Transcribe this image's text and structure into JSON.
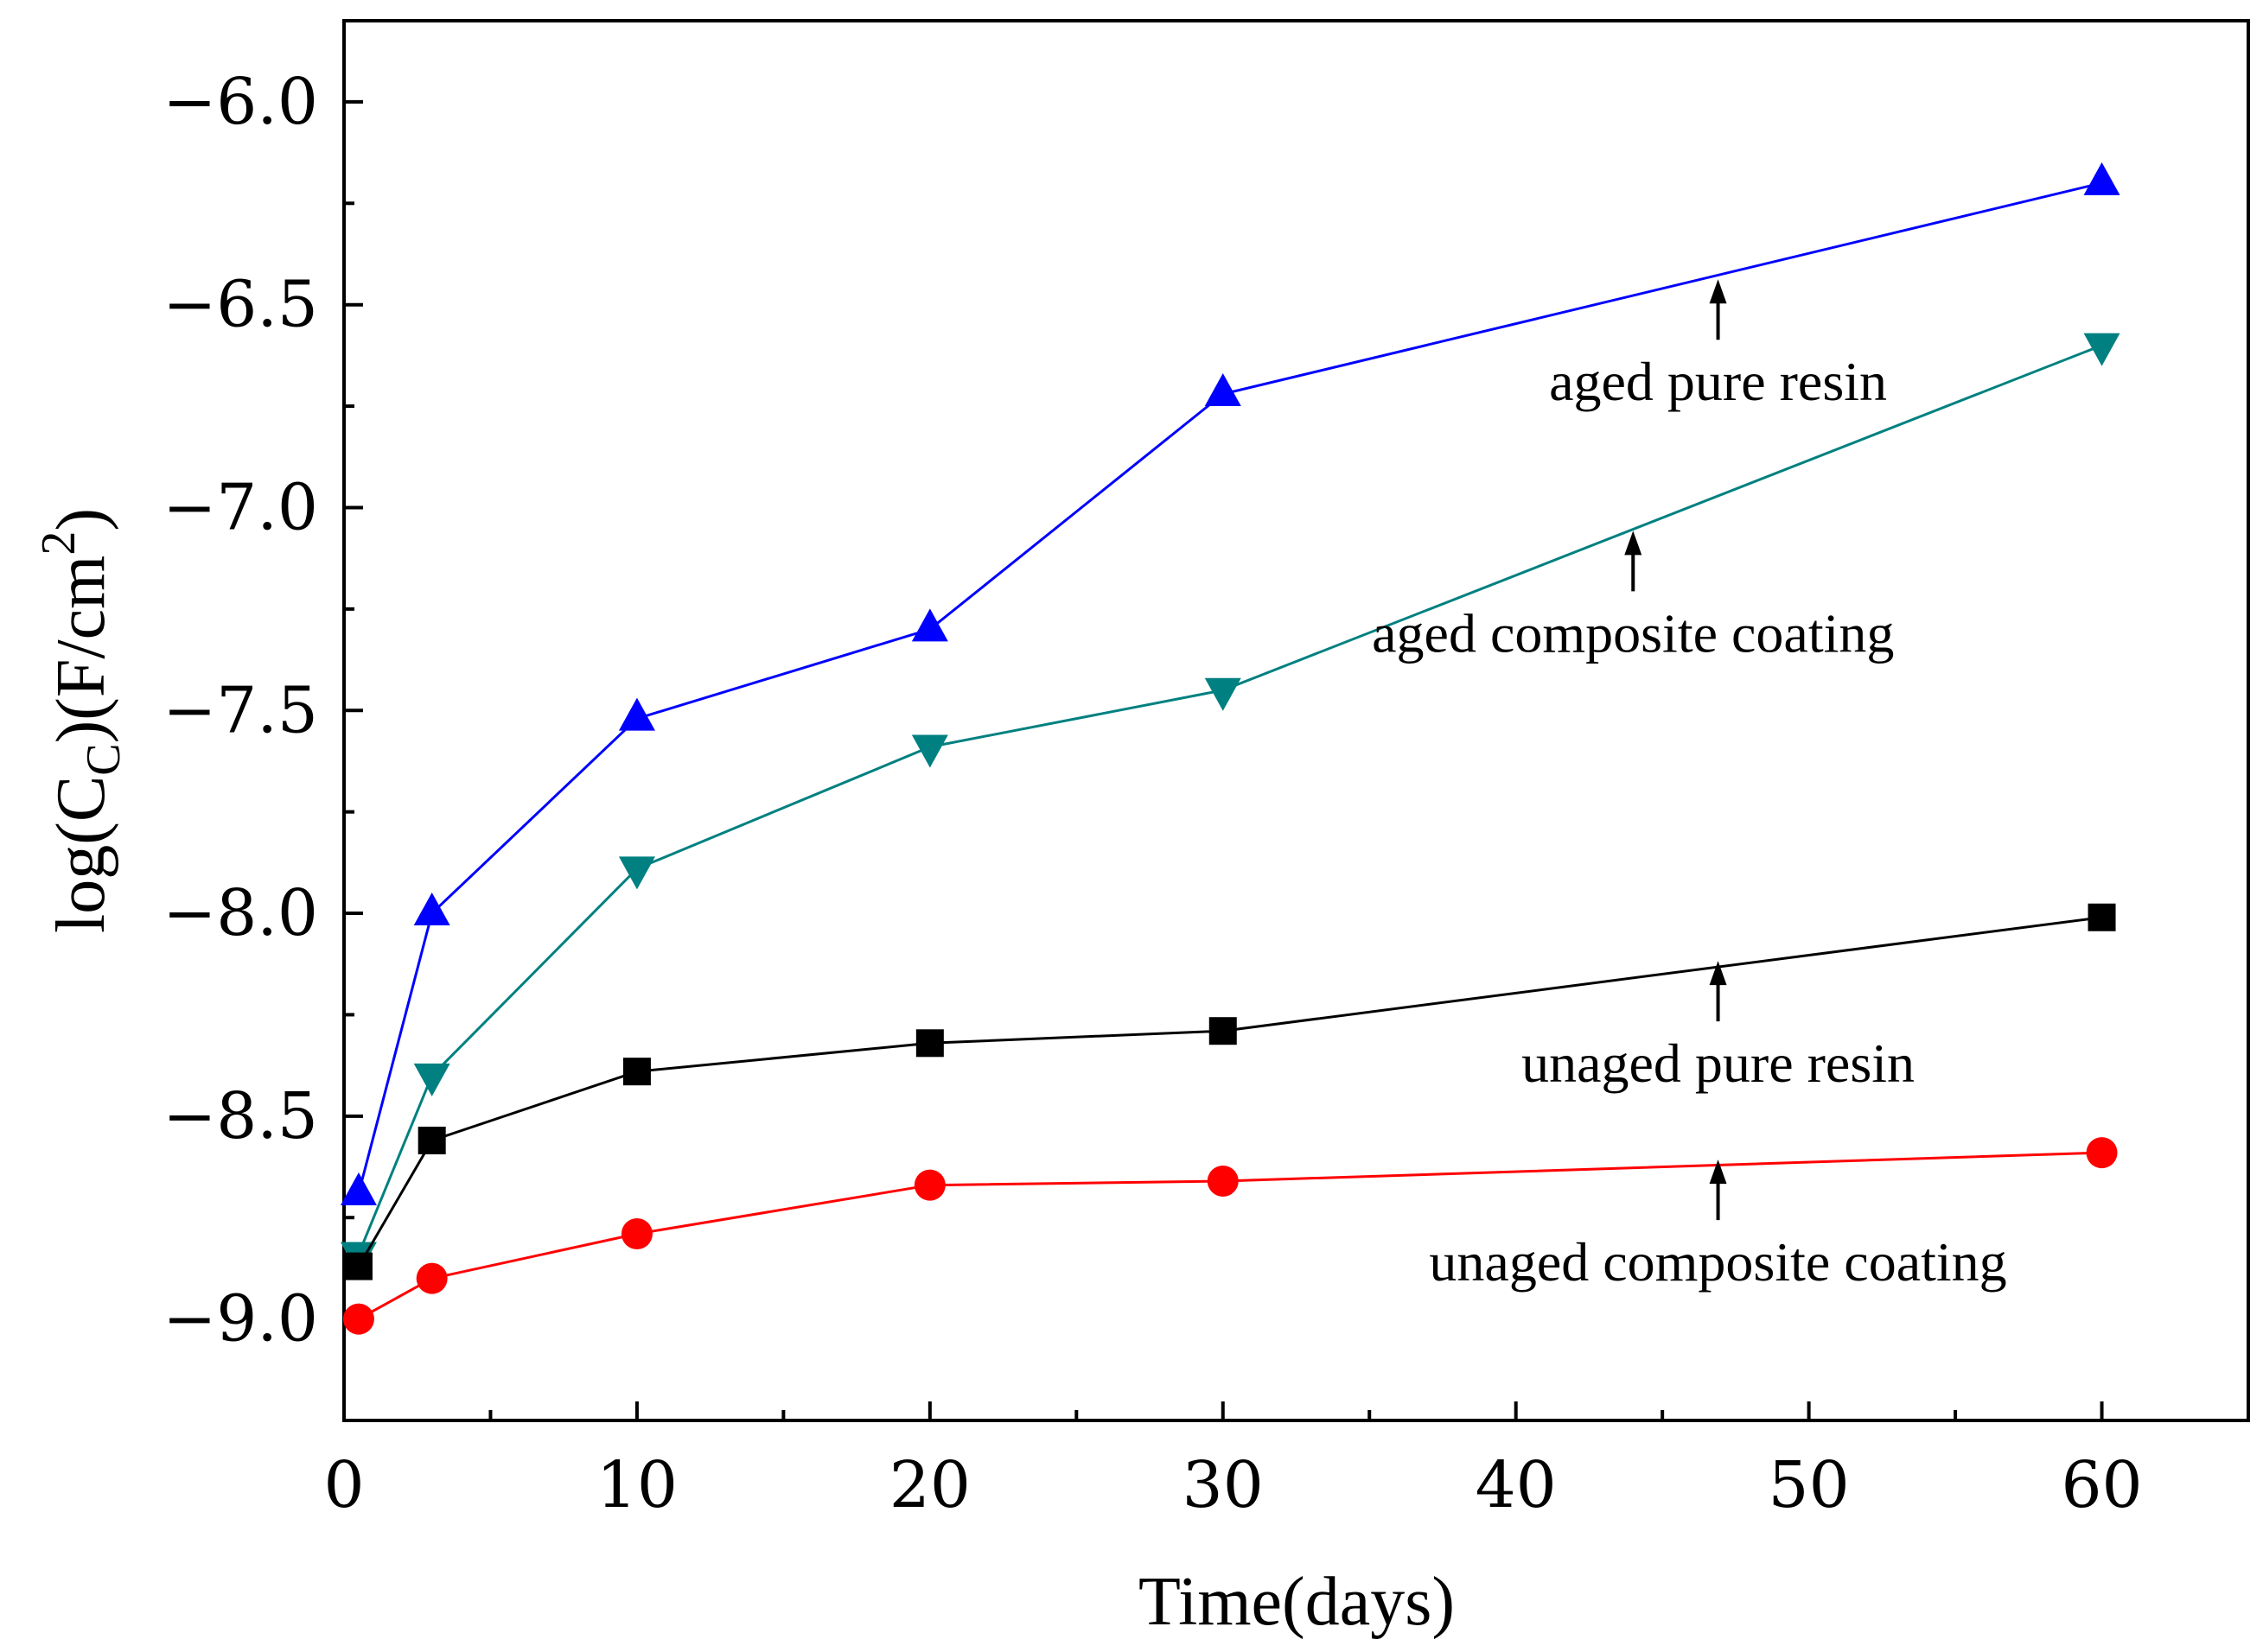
{
  "chart_data": {
    "type": "line",
    "title": "",
    "xlabel": "Time(days)",
    "ylabel": {
      "prefix": "log(C",
      "sub": "C",
      "mid": ")(F/cm",
      "sup": "2",
      "suffix": ")"
    },
    "xlim": [
      0,
      65
    ],
    "ylim": [
      -9.25,
      -5.8
    ],
    "xticks": [
      0,
      10,
      20,
      30,
      40,
      50,
      60
    ],
    "xtick_labels": [
      "0",
      "10",
      "20",
      "30",
      "40",
      "50",
      "60"
    ],
    "yticks": [
      -9.0,
      -8.5,
      -8.0,
      -7.5,
      -7.0,
      -6.5,
      -6.0
    ],
    "ytick_labels": [
      "−9.0",
      "−8.5",
      "−8.0",
      "−7.5",
      "−7.0",
      "−6.5",
      "−6.0"
    ],
    "grid": false,
    "legend": "none",
    "series": [
      {
        "name": "aged pure resin",
        "color": "#0000ff",
        "marker": "triangle-up",
        "x": [
          0.5,
          3,
          10,
          20,
          30,
          60
        ],
        "y": [
          -8.69,
          -8.0,
          -7.52,
          -7.3,
          -6.72,
          -6.2
        ]
      },
      {
        "name": "aged composite coating",
        "color": "#008080",
        "marker": "triangle-down",
        "x": [
          0.5,
          3,
          10,
          20,
          30,
          60
        ],
        "y": [
          -8.84,
          -8.4,
          -7.89,
          -7.59,
          -7.45,
          -6.6
        ]
      },
      {
        "name": "unaged pure resin",
        "color": "#000000",
        "marker": "square",
        "x": [
          0.5,
          3,
          10,
          20,
          30,
          60
        ],
        "y": [
          -8.87,
          -8.56,
          -8.39,
          -8.32,
          -8.29,
          -8.01
        ]
      },
      {
        "name": "unaged composite coating",
        "color": "#ff0000",
        "marker": "circle",
        "x": [
          0.5,
          3,
          10,
          20,
          30,
          60
        ],
        "y": [
          -9.0,
          -8.9,
          -8.79,
          -8.67,
          -8.66,
          -8.59
        ]
      }
    ],
    "annotations": [
      {
        "text": "aged pure resin",
        "arrow_x": 46.9,
        "arrow_y": -6.45
      },
      {
        "text": "aged composite coating",
        "arrow_x": 44.0,
        "arrow_y": -7.07
      },
      {
        "text": "unaged pure resin",
        "arrow_x": 46.9,
        "arrow_y": -8.13
      },
      {
        "text": "unaged composite coating",
        "arrow_x": 46.9,
        "arrow_y": -8.62
      }
    ]
  }
}
